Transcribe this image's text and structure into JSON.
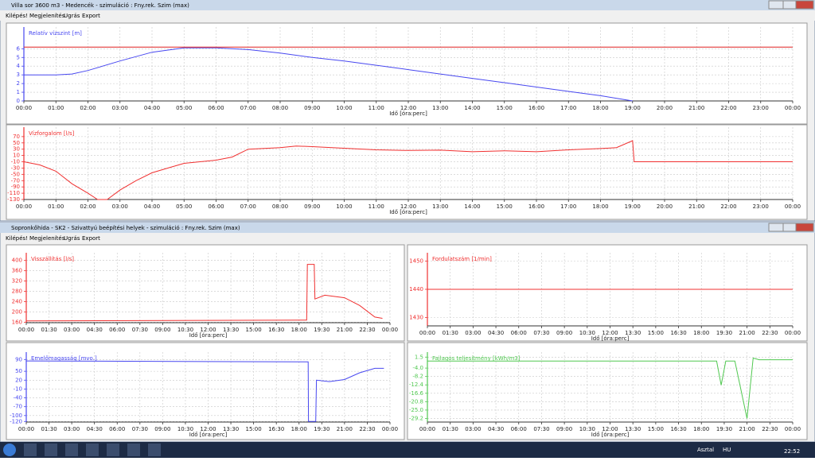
{
  "windows": [
    {
      "title": "Villa sor 3600 m3 - Medencék - szimuláció : Fny.rek. Szim (max)",
      "menu": [
        "Kilépés!",
        "Megjelenítés",
        "Ugrás",
        "Export"
      ]
    },
    {
      "title": "Sopronkőhida - SK2 - Szivattyú beépítési helyek - szimuláció : Fny.rek. Szim (max)",
      "menu": [
        "Kilépés!",
        "Megjelenítés",
        "Ugrás",
        "Export"
      ]
    }
  ],
  "chart_data": [
    {
      "type": "line",
      "title": "Relatív vízszint [m]",
      "x_label": "Idő [óra:perc]",
      "grid": true,
      "xlim": [
        0,
        24
      ],
      "ylim": [
        0,
        8.5
      ],
      "yticks": [
        0,
        1,
        2,
        3,
        4,
        5,
        6
      ],
      "xticks": [
        {
          "value": 0,
          "label": "00:00"
        },
        {
          "value": 1,
          "label": "01:00"
        },
        {
          "value": 2,
          "label": "02:00"
        },
        {
          "value": 3,
          "label": "03:00"
        },
        {
          "value": 4,
          "label": "04:00"
        },
        {
          "value": 5,
          "label": "05:00"
        },
        {
          "value": 6,
          "label": "06:00"
        },
        {
          "value": 7,
          "label": "07:00"
        },
        {
          "value": 8,
          "label": "08:00"
        },
        {
          "value": 9,
          "label": "09:00"
        },
        {
          "value": 10,
          "label": "10:00"
        },
        {
          "value": 11,
          "label": "11:00"
        },
        {
          "value": 12,
          "label": "12:00"
        },
        {
          "value": 13,
          "label": "13:00"
        },
        {
          "value": 14,
          "label": "14:00"
        },
        {
          "value": 15,
          "label": "15:00"
        },
        {
          "value": 16,
          "label": "16:00"
        },
        {
          "value": 17,
          "label": "17:00"
        },
        {
          "value": 18,
          "label": "18:00"
        },
        {
          "value": 19,
          "label": "19:00"
        },
        {
          "value": 20,
          "label": "20:00"
        },
        {
          "value": 21,
          "label": "21:00"
        },
        {
          "value": 22,
          "label": "22:00"
        },
        {
          "value": 23,
          "label": "23:00"
        },
        {
          "value": 24,
          "label": "00:00"
        }
      ],
      "series": [
        {
          "color": "#4848f0",
          "x": [
            0,
            1,
            1.5,
            2,
            3,
            4,
            5,
            6,
            7,
            8,
            9,
            10,
            11,
            12,
            13,
            14,
            15,
            16,
            17,
            18,
            19
          ],
          "values": [
            3.0,
            3.0,
            3.1,
            3.5,
            4.6,
            5.6,
            6.1,
            6.1,
            5.9,
            5.5,
            5.0,
            4.6,
            4.1,
            3.6,
            3.1,
            2.6,
            2.1,
            1.6,
            1.1,
            0.6,
            0.0
          ]
        },
        {
          "color": "#e02020",
          "x": [
            0,
            24
          ],
          "values": [
            6.2,
            6.2
          ]
        }
      ]
    },
    {
      "type": "line",
      "title": "Vízforgalom [l/s]",
      "x_label": "Idő [óra:perc]",
      "grid": true,
      "xlim": [
        0,
        24
      ],
      "ylim": [
        -130,
        100
      ],
      "yticks": [
        70,
        50,
        30,
        10,
        -10,
        -30,
        -50,
        -70,
        -90,
        -110,
        -130
      ],
      "xticks": [
        {
          "value": 0,
          "label": "00:00"
        },
        {
          "value": 1,
          "label": "01:00"
        },
        {
          "value": 2,
          "label": "02:00"
        },
        {
          "value": 3,
          "label": "03:00"
        },
        {
          "value": 4,
          "label": "04:00"
        },
        {
          "value": 5,
          "label": "05:00"
        },
        {
          "value": 6,
          "label": "06:00"
        },
        {
          "value": 7,
          "label": "07:00"
        },
        {
          "value": 8,
          "label": "08:00"
        },
        {
          "value": 9,
          "label": "09:00"
        },
        {
          "value": 10,
          "label": "10:00"
        },
        {
          "value": 11,
          "label": "11:00"
        },
        {
          "value": 12,
          "label": "12:00"
        },
        {
          "value": 13,
          "label": "13:00"
        },
        {
          "value": 14,
          "label": "14:00"
        },
        {
          "value": 15,
          "label": "15:00"
        },
        {
          "value": 16,
          "label": "16:00"
        },
        {
          "value": 17,
          "label": "17:00"
        },
        {
          "value": 18,
          "label": "18:00"
        },
        {
          "value": 19,
          "label": "19:00"
        },
        {
          "value": 20,
          "label": "20:00"
        },
        {
          "value": 21,
          "label": "21:00"
        },
        {
          "value": 22,
          "label": "22:00"
        },
        {
          "value": 23,
          "label": "23:00"
        },
        {
          "value": 24,
          "label": "00:00"
        }
      ],
      "series": [
        {
          "color": "#f03030",
          "x": [
            0,
            0.5,
            1,
            1.5,
            2,
            2.3,
            2.6,
            3,
            3.5,
            4,
            4.5,
            5,
            6,
            6.5,
            7,
            8,
            8.5,
            9,
            10,
            11,
            12,
            13,
            14,
            15,
            16,
            17,
            18,
            18.5,
            19,
            19.05,
            24
          ],
          "values": [
            -10,
            -20,
            -40,
            -80,
            -110,
            -130,
            -130,
            -100,
            -70,
            -45,
            -30,
            -15,
            -5,
            5,
            30,
            35,
            40,
            38,
            33,
            28,
            26,
            27,
            22,
            25,
            22,
            28,
            32,
            35,
            57,
            -10,
            -10
          ]
        }
      ]
    },
    {
      "type": "line",
      "title": "Visszállítás [l/s]",
      "x_label": "Idő [óra:perc]",
      "grid": true,
      "xlim": [
        0,
        24
      ],
      "ylim": [
        158,
        430
      ],
      "yticks": [
        400,
        360,
        320,
        280,
        240,
        200,
        160
      ],
      "xticks": [
        {
          "value": 0,
          "label": "00:00"
        },
        {
          "value": 1.5,
          "label": "01:30"
        },
        {
          "value": 3,
          "label": "03:00"
        },
        {
          "value": 4.5,
          "label": "04:30"
        },
        {
          "value": 6,
          "label": "06:00"
        },
        {
          "value": 7.5,
          "label": "07:30"
        },
        {
          "value": 9,
          "label": "09:00"
        },
        {
          "value": 10.5,
          "label": "10:30"
        },
        {
          "value": 12,
          "label": "12:00"
        },
        {
          "value": 13.5,
          "label": "13:30"
        },
        {
          "value": 15,
          "label": "15:00"
        },
        {
          "value": 16.5,
          "label": "16:30"
        },
        {
          "value": 18,
          "label": "18:00"
        },
        {
          "value": 19.5,
          "label": "19:30"
        },
        {
          "value": 21,
          "label": "21:00"
        },
        {
          "value": 22.5,
          "label": "22:30"
        },
        {
          "value": 24,
          "label": "00:00"
        }
      ],
      "series": [
        {
          "color": "#f03030",
          "x": [
            0,
            18.5,
            18.55,
            19,
            19.05,
            19.7,
            21,
            22,
            23,
            23.5
          ],
          "values": [
            165,
            168,
            385,
            385,
            250,
            265,
            255,
            225,
            180,
            175
          ]
        }
      ]
    },
    {
      "type": "line",
      "title": "Fordulatszám [1/min]",
      "x_label": "Idő [óra:perc]",
      "grid": true,
      "xlim": [
        0,
        24
      ],
      "ylim": [
        1427,
        1453
      ],
      "yticks": [
        1450,
        1440,
        1430
      ],
      "xticks": [
        {
          "value": 0,
          "label": "00:00"
        },
        {
          "value": 1.5,
          "label": "01:30"
        },
        {
          "value": 3,
          "label": "03:00"
        },
        {
          "value": 4.5,
          "label": "04:30"
        },
        {
          "value": 6,
          "label": "06:00"
        },
        {
          "value": 7.5,
          "label": "07:30"
        },
        {
          "value": 9,
          "label": "09:00"
        },
        {
          "value": 10.5,
          "label": "10:30"
        },
        {
          "value": 12,
          "label": "12:00"
        },
        {
          "value": 13.5,
          "label": "13:30"
        },
        {
          "value": 15,
          "label": "15:00"
        },
        {
          "value": 16.5,
          "label": "16:30"
        },
        {
          "value": 18,
          "label": "18:00"
        },
        {
          "value": 19.5,
          "label": "19:30"
        },
        {
          "value": 21,
          "label": "21:00"
        },
        {
          "value": 22.5,
          "label": "22:30"
        },
        {
          "value": 24,
          "label": "00:00"
        }
      ],
      "series": [
        {
          "color": "#f03030",
          "x": [
            0,
            24
          ],
          "values": [
            1440,
            1440
          ]
        }
      ]
    },
    {
      "type": "line",
      "title": "Emelőmagasság [mvo.]",
      "x_label": "Idő [óra:perc]",
      "grid": true,
      "xlim": [
        0,
        24
      ],
      "ylim": [
        -122,
        115
      ],
      "yticks": [
        90,
        50,
        20,
        -10,
        -40,
        -70,
        -100,
        -120
      ],
      "xticks": [
        {
          "value": 0,
          "label": "00:00"
        },
        {
          "value": 1.5,
          "label": "01:30"
        },
        {
          "value": 3,
          "label": "03:00"
        },
        {
          "value": 4.5,
          "label": "04:30"
        },
        {
          "value": 6,
          "label": "06:00"
        },
        {
          "value": 7.5,
          "label": "07:30"
        },
        {
          "value": 9,
          "label": "09:00"
        },
        {
          "value": 10.5,
          "label": "10:30"
        },
        {
          "value": 12,
          "label": "12:00"
        },
        {
          "value": 13.5,
          "label": "13:30"
        },
        {
          "value": 15,
          "label": "15:00"
        },
        {
          "value": 16.5,
          "label": "16:30"
        },
        {
          "value": 18,
          "label": "18:00"
        },
        {
          "value": 19.5,
          "label": "19:30"
        },
        {
          "value": 21,
          "label": "21:00"
        },
        {
          "value": 22.5,
          "label": "22:30"
        },
        {
          "value": 24,
          "label": "00:00"
        }
      ],
      "series": [
        {
          "color": "#4848f0",
          "x": [
            0,
            18.6,
            18.62,
            19.1,
            19.15,
            20,
            21,
            22,
            23,
            23.6
          ],
          "values": [
            85,
            82,
            -120,
            -120,
            20,
            15,
            22,
            45,
            60,
            60
          ]
        }
      ]
    },
    {
      "type": "line",
      "title": "Fajlagos teljesítmény [kWh/m3]",
      "x_label": "Idő [óra:perc]",
      "grid": true,
      "xlim": [
        0,
        24
      ],
      "ylim": [
        -31,
        4
      ],
      "yticks": [
        1.5,
        {
          "value": -4,
          "label": "-4.0"
        },
        -8.2,
        -12.4,
        -16.6,
        -20.8,
        {
          "value": -25,
          "label": "-25.0"
        },
        -29.2
      ],
      "xticks": [
        {
          "value": 0,
          "label": "00:00"
        },
        {
          "value": 1.5,
          "label": "01:30"
        },
        {
          "value": 3,
          "label": "03:00"
        },
        {
          "value": 4.5,
          "label": "04:30"
        },
        {
          "value": 6,
          "label": "06:00"
        },
        {
          "value": 7.5,
          "label": "07:30"
        },
        {
          "value": 9,
          "label": "09:00"
        },
        {
          "value": 10.5,
          "label": "10:30"
        },
        {
          "value": 12,
          "label": "12:00"
        },
        {
          "value": 13.5,
          "label": "13:30"
        },
        {
          "value": 15,
          "label": "15:00"
        },
        {
          "value": 16.5,
          "label": "16:30"
        },
        {
          "value": 18,
          "label": "18:00"
        },
        {
          "value": 19.5,
          "label": "19:30"
        },
        {
          "value": 21,
          "label": "21:00"
        },
        {
          "value": 22.5,
          "label": "22:30"
        },
        {
          "value": 24,
          "label": "00:00"
        }
      ],
      "series": [
        {
          "color": "#50c850",
          "x": [
            0,
            19,
            19.3,
            19.6,
            20.2,
            21,
            21.4,
            21.8,
            24
          ],
          "values": [
            -0.5,
            -0.5,
            -12.5,
            -0.5,
            -0.5,
            -29.2,
            1.0,
            0.2,
            0.2
          ]
        }
      ]
    }
  ],
  "taskbar": {
    "items": [
      "Asztal",
      "HU"
    ],
    "clock": "22:52"
  }
}
